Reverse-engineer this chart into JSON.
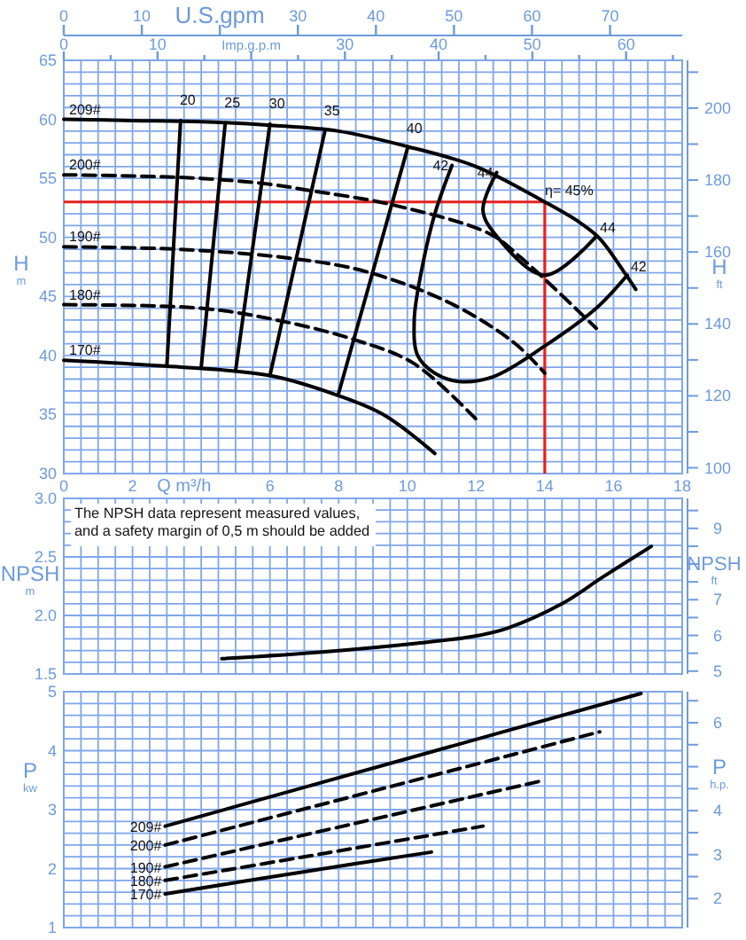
{
  "chart_data": [
    {
      "type": "line",
      "xlabel": "Q m³/h",
      "ylabel": "H$_{m}$",
      "y2label": "H$_{ft}$",
      "x2label": "U.S.gpm",
      "grid": true,
      "legend": false,
      "marker": "none",
      "xlim": [
        0,
        18
      ],
      "ylim": [
        30,
        65
      ],
      "y2lim": [
        98.4,
        213.3
      ],
      "x2lim": [
        0,
        79.25
      ],
      "x2ticks": [
        0,
        10,
        {
          "value": 20,
          "label": null
        },
        30,
        40,
        50,
        60,
        70
      ],
      "xticks": [
        0,
        {
          "value": 0.5,
          "label": null
        },
        {
          "value": 1,
          "label": null
        },
        {
          "value": 1.5,
          "label": null
        },
        2,
        {
          "value": 2.5,
          "label": null
        },
        {
          "value": 3,
          "label": null
        },
        {
          "value": 3.5,
          "label": null
        },
        {
          "value": 4,
          "label": null
        },
        {
          "value": 4.5,
          "label": null
        },
        {
          "value": 5,
          "label": null
        },
        {
          "value": 5.5,
          "label": null
        },
        6,
        {
          "value": 6.5,
          "label": null
        },
        {
          "value": 7,
          "label": null
        },
        {
          "value": 7.5,
          "label": null
        },
        8,
        {
          "value": 8.5,
          "label": null
        },
        {
          "value": 9,
          "label": null
        },
        {
          "value": 9.5,
          "label": null
        },
        10,
        {
          "value": 10.5,
          "label": null
        },
        {
          "value": 11,
          "label": null
        },
        {
          "value": 11.5,
          "label": null
        },
        12,
        {
          "value": 12.5,
          "label": null
        },
        {
          "value": 13,
          "label": null
        },
        {
          "value": 13.5,
          "label": null
        },
        14,
        {
          "value": 14.5,
          "label": null
        },
        {
          "value": 15,
          "label": null
        },
        {
          "value": 15.5,
          "label": null
        },
        16,
        {
          "value": 16.5,
          "label": null
        },
        {
          "value": 17,
          "label": null
        },
        {
          "value": 17.5,
          "label": null
        },
        18
      ],
      "yticks": [
        30,
        {
          "value": 31,
          "label": null
        },
        {
          "value": 32,
          "label": null
        },
        {
          "value": 33,
          "label": null
        },
        {
          "value": 34,
          "label": null
        },
        35,
        {
          "value": 36,
          "label": null
        },
        {
          "value": 37,
          "label": null
        },
        {
          "value": 38,
          "label": null
        },
        {
          "value": 39,
          "label": null
        },
        40,
        {
          "value": 41,
          "label": null
        },
        {
          "value": 42,
          "label": null
        },
        {
          "value": 43,
          "label": null
        },
        {
          "value": 44,
          "label": null
        },
        45,
        {
          "value": 46,
          "label": null
        },
        {
          "value": 47,
          "label": null
        },
        {
          "value": 48,
          "label": null
        },
        {
          "value": 49,
          "label": null
        },
        50,
        {
          "value": 51,
          "label": null
        },
        {
          "value": 52,
          "label": null
        },
        {
          "value": 53,
          "label": null
        },
        {
          "value": 54,
          "label": null
        },
        55,
        {
          "value": 56,
          "label": null
        },
        {
          "value": 57,
          "label": null
        },
        {
          "value": 58,
          "label": null
        },
        {
          "value": 59,
          "label": null
        },
        60,
        {
          "value": 61,
          "label": null
        },
        {
          "value": 62,
          "label": null
        },
        {
          "value": 63,
          "label": null
        },
        {
          "value": 64,
          "label": null
        },
        65
      ],
      "y2ticks": [
        100,
        {
          "value": 110,
          "label": null
        },
        120,
        {
          "value": 130,
          "label": null
        },
        140,
        {
          "value": 150,
          "label": null
        },
        160,
        {
          "value": 170,
          "label": null
        },
        180,
        {
          "value": 190,
          "label": null
        },
        200,
        {
          "value": 210,
          "label": null
        }
      ],
      "series": [
        {
          "name": "209#",
          "color": "#000000",
          "line_style": "solid",
          "x": [
            0,
            2,
            4,
            6,
            8,
            10,
            12,
            14,
            15,
            15.6,
            16.3,
            16.65
          ],
          "values": [
            60,
            59.9,
            59.8,
            59.5,
            59,
            57.7,
            56,
            53,
            51.3,
            49.9,
            47.1,
            45.6
          ]
        },
        {
          "name": "200#",
          "color": "#000000",
          "line_style": "dashed",
          "x": [
            0,
            2,
            4,
            6,
            7.1,
            9.5,
            12.4,
            13.3,
            15.5
          ],
          "values": [
            55.3,
            55.2,
            55,
            54.5,
            54,
            52.8,
            50.3,
            48.3,
            42.3
          ]
        },
        {
          "name": "190#",
          "color": "#000000",
          "line_style": "dashed",
          "x": [
            0,
            3.3,
            6.7,
            8.8,
            11.2,
            13.1,
            14
          ],
          "values": [
            49.2,
            49,
            48.2,
            47.1,
            44.5,
            41.1,
            38.5
          ]
        },
        {
          "name": "180#",
          "color": "#000000",
          "line_style": "dashed",
          "x": [
            0,
            4,
            6.2,
            8.5,
            10.2,
            12.1
          ],
          "values": [
            44.3,
            44,
            43,
            41.3,
            39.3,
            34.3
          ]
        },
        {
          "name": "170#",
          "color": "#000000",
          "line_style": "solid",
          "x": [
            0,
            2.95,
            6,
            7.9,
            9.3,
            10.8
          ],
          "values": [
            39.6,
            39.1,
            38.3,
            36.7,
            35,
            31.7
          ]
        },
        {
          "name": "20",
          "color": "#000000",
          "line_style": "solid",
          "x": [
            3.4,
            3.0
          ],
          "values": [
            59.9,
            39.1
          ]
        },
        {
          "name": "25",
          "color": "#000000",
          "line_style": "solid",
          "x": [
            4.7,
            4.0
          ],
          "values": [
            59.7,
            39.0
          ]
        },
        {
          "name": "30",
          "color": "#000000",
          "line_style": "solid",
          "x": [
            6.0,
            5.0
          ],
          "values": [
            59.6,
            38.7
          ]
        },
        {
          "name": "35",
          "color": "#000000",
          "line_style": "solid",
          "x": [
            7.6,
            6.0
          ],
          "values": [
            59.0,
            38.3
          ]
        },
        {
          "name": "40",
          "color": "#000000",
          "line_style": "solid",
          "x": [
            10.0,
            8.0
          ],
          "values": [
            57.5,
            36.8
          ]
        },
        {
          "name": "42",
          "color": "#000000",
          "line_style": "solid",
          "x": [
            11.3,
            10.8,
            10.4,
            10.2,
            10.3,
            10.8,
            11.5,
            12.5,
            14,
            15.5,
            16.4
          ],
          "values": [
            56.1,
            52,
            47,
            43,
            40,
            38.5,
            37.8,
            38.2,
            40.8,
            44,
            46.8
          ]
        },
        {
          "name": "44",
          "color": "#000000",
          "line_style": "solid",
          "x": [
            12.6,
            12.2,
            12.6,
            14,
            15.5
          ],
          "values": [
            55.5,
            52.3,
            50.1,
            46.8,
            50.1
          ]
        }
      ],
      "ref_lines": [
        {
          "axis": "y",
          "value": 53,
          "color": "#e8201c"
        },
        {
          "axis": "x",
          "value": 14,
          "color": "#e8201c"
        }
      ],
      "annotations": [
        {
          "text": "η= 45%",
          "x": 13.9,
          "y": 53.3
        },
        {
          "text": "44",
          "x": 15.5,
          "y": 50.1
        },
        {
          "text": "42",
          "x": 16.4,
          "y": 46.8
        },
        "0",
        "10",
        "Imp.g.p.m",
        "30",
        "40",
        "50",
        "60"
      ]
    },
    {
      "type": "line",
      "ylabel": "NPSH$_{m}$",
      "y2label": "NPSH$_{ft}$",
      "grid": true,
      "legend": false,
      "marker": "none",
      "tick_labels": "y",
      "xlim": [
        0,
        18
      ],
      "ylim": [
        1.5,
        3.0
      ],
      "y2lim": [
        4.92,
        9.84
      ],
      "xticks": [
        0,
        {
          "value": 0.5,
          "label": null
        },
        {
          "value": 1,
          "label": null
        },
        {
          "value": 1.5,
          "label": null
        },
        {
          "value": 2,
          "label": null
        },
        {
          "value": 2.5,
          "label": null
        },
        {
          "value": 3,
          "label": null
        },
        {
          "value": 3.5,
          "label": null
        },
        {
          "value": 4,
          "label": null
        },
        {
          "value": 4.5,
          "label": null
        },
        {
          "value": 5,
          "label": null
        },
        {
          "value": 5.5,
          "label": null
        },
        {
          "value": 6,
          "label": null
        },
        {
          "value": 6.5,
          "label": null
        },
        {
          "value": 7,
          "label": null
        },
        {
          "value": 7.5,
          "label": null
        },
        {
          "value": 8,
          "label": null
        },
        {
          "value": 8.5,
          "label": null
        },
        {
          "value": 9,
          "label": null
        },
        {
          "value": 9.5,
          "label": null
        },
        {
          "value": 10,
          "label": null
        },
        {
          "value": 10.5,
          "label": null
        },
        {
          "value": 11,
          "label": null
        },
        {
          "value": 11.5,
          "label": null
        },
        {
          "value": 12,
          "label": null
        },
        {
          "value": 12.5,
          "label": null
        },
        {
          "value": 13,
          "label": null
        },
        {
          "value": 13.5,
          "label": null
        },
        {
          "value": 14,
          "label": null
        },
        {
          "value": 14.5,
          "label": null
        },
        {
          "value": 15,
          "label": null
        },
        {
          "value": 15.5,
          "label": null
        },
        {
          "value": 16,
          "label": null
        },
        {
          "value": 16.5,
          "label": null
        },
        {
          "value": 17,
          "label": null
        },
        {
          "value": 17.5,
          "label": null
        },
        {
          "value": 18,
          "label": null
        }
      ],
      "yticks": [
        1.5,
        {
          "value": 1.6,
          "label": null
        },
        {
          "value": 1.7,
          "label": null
        },
        {
          "value": 1.8,
          "label": null
        },
        {
          "value": 1.9,
          "label": null
        },
        {
          "value": 2,
          "label": "2.0"
        },
        {
          "value": 2.1,
          "label": null
        },
        {
          "value": 2.2,
          "label": null
        },
        {
          "value": 2.3,
          "label": null
        },
        {
          "value": 2.4,
          "label": null
        },
        2.5,
        {
          "value": 2.6,
          "label": null
        },
        {
          "value": 2.7,
          "label": null
        },
        {
          "value": 2.8,
          "label": null
        },
        {
          "value": 2.9,
          "label": null
        },
        {
          "value": 3,
          "label": "3.0"
        }
      ],
      "y2ticks": [
        5,
        {
          "value": 5.5,
          "label": null
        },
        6,
        {
          "value": 6.5,
          "label": null
        },
        7,
        {
          "value": 7.5,
          "label": null
        },
        {
          "value": 8,
          "label": null
        },
        {
          "value": 8.5,
          "label": null
        },
        9,
        {
          "value": 9.5,
          "label": null
        }
      ],
      "series": [
        {
          "color": "#000000",
          "line_style": "solid",
          "x": [
            4.6,
            7.6,
            10.2,
            11.9,
            12.9,
            14.5,
            15.7,
            17.1
          ],
          "values": [
            1.63,
            1.69,
            1.76,
            1.82,
            1.89,
            2.1,
            2.33,
            2.59
          ]
        }
      ],
      "annotations": [
        "The NPSH data represent measured values,\nand a safety margin of 0,5 m should be added"
      ]
    },
    {
      "type": "line",
      "ylabel": "P$_{kw}$",
      "y2label": "P$_{h.p.}$",
      "grid": true,
      "legend": false,
      "marker": "none",
      "tick_labels": "y",
      "xlim": [
        0,
        18
      ],
      "ylim": [
        1,
        5
      ],
      "y2lim": [
        1.341,
        6.705
      ],
      "xticks": [
        0,
        {
          "value": 0.5,
          "label": null
        },
        {
          "value": 1,
          "label": null
        },
        {
          "value": 1.5,
          "label": null
        },
        {
          "value": 2,
          "label": null
        },
        {
          "value": 2.5,
          "label": null
        },
        {
          "value": 3,
          "label": null
        },
        {
          "value": 3.5,
          "label": null
        },
        {
          "value": 4,
          "label": null
        },
        {
          "value": 4.5,
          "label": null
        },
        {
          "value": 5,
          "label": null
        },
        {
          "value": 5.5,
          "label": null
        },
        {
          "value": 6,
          "label": null
        },
        {
          "value": 6.5,
          "label": null
        },
        {
          "value": 7,
          "label": null
        },
        {
          "value": 7.5,
          "label": null
        },
        {
          "value": 8,
          "label": null
        },
        {
          "value": 8.5,
          "label": null
        },
        {
          "value": 9,
          "label": null
        },
        {
          "value": 9.5,
          "label": null
        },
        {
          "value": 10,
          "label": null
        },
        {
          "value": 10.5,
          "label": null
        },
        {
          "value": 11,
          "label": null
        },
        {
          "value": 11.5,
          "label": null
        },
        {
          "value": 12,
          "label": null
        },
        {
          "value": 12.5,
          "label": null
        },
        {
          "value": 13,
          "label": null
        },
        {
          "value": 13.5,
          "label": null
        },
        {
          "value": 14,
          "label": null
        },
        {
          "value": 14.5,
          "label": null
        },
        {
          "value": 15,
          "label": null
        },
        {
          "value": 15.5,
          "label": null
        },
        {
          "value": 16,
          "label": null
        },
        {
          "value": 16.5,
          "label": null
        },
        {
          "value": 17,
          "label": null
        },
        {
          "value": 17.5,
          "label": null
        },
        {
          "value": 18,
          "label": null
        }
      ],
      "yticks": [
        1,
        {
          "value": 1.2,
          "label": null
        },
        {
          "value": 1.4,
          "label": null
        },
        {
          "value": 1.6,
          "label": null
        },
        {
          "value": 1.8,
          "label": null
        },
        2,
        {
          "value": 2.2,
          "label": null
        },
        {
          "value": 2.4,
          "label": null
        },
        {
          "value": 2.6,
          "label": null
        },
        {
          "value": 2.8,
          "label": null
        },
        3,
        {
          "value": 3.2,
          "label": null
        },
        {
          "value": 3.4,
          "label": null
        },
        {
          "value": 3.6,
          "label": null
        },
        {
          "value": 3.8,
          "label": null
        },
        4,
        {
          "value": 4.2,
          "label": null
        },
        {
          "value": 4.4,
          "label": null
        },
        {
          "value": 4.6,
          "label": null
        },
        {
          "value": 4.8,
          "label": null
        },
        5
      ],
      "y2ticks": [
        2,
        {
          "value": 2.5,
          "label": null
        },
        3,
        {
          "value": 3.5,
          "label": null
        },
        4,
        {
          "value": 4.5,
          "label": null
        },
        {
          "value": 5,
          "label": null
        },
        {
          "value": 5.5,
          "label": null
        },
        6,
        {
          "value": 6.5,
          "label": null
        }
      ],
      "series": [
        {
          "name": "209#",
          "color": "#000000",
          "line_style": "solid",
          "x": [
            2.95,
            9.9,
            16.8
          ],
          "values": [
            2.72,
            3.85,
            4.97
          ]
        },
        {
          "name": "200#",
          "color": "#000000",
          "line_style": "dashed",
          "x": [
            2.95,
            9.3,
            15.6
          ],
          "values": [
            2.4,
            3.36,
            4.32
          ]
        },
        {
          "name": "190#",
          "color": "#000000",
          "line_style": "dashed",
          "x": [
            2.95,
            8.5,
            14
          ],
          "values": [
            2.03,
            2.77,
            3.5
          ]
        },
        {
          "name": "180#",
          "color": "#000000",
          "line_style": "dashed",
          "x": [
            2.95,
            7.6,
            12.2
          ],
          "values": [
            1.8,
            2.26,
            2.72
          ]
        },
        {
          "name": "170#",
          "color": "#000000",
          "line_style": "solid",
          "x": [
            2.95,
            6.8,
            10.7
          ],
          "values": [
            1.57,
            1.93,
            2.28
          ]
        }
      ]
    }
  ]
}
